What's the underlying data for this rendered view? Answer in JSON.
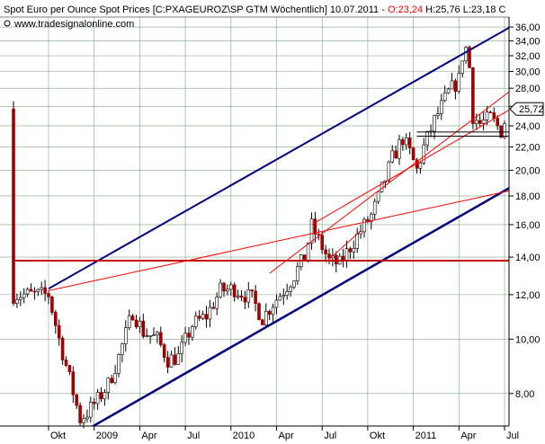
{
  "header": {
    "title": "Spot Euro per Ounce Spot Prices [C:PXAGEUROZ\\SP GTM  Wöchentlich] 10.07.2011 - ",
    "ohlc_open": "O:23,24",
    "ohlc_rest": " H:25,76 L:23,18 C",
    "website": "www.tradesignalonline.com"
  },
  "colors": {
    "background": "#ffffff",
    "grid": "#7fa87f",
    "up_candle": "#ffffff",
    "down_candle": "#a00000",
    "wick": "#000000",
    "channel": "#000080",
    "trend_red": "#ff0000",
    "support_black": "#000000"
  },
  "chart_data": {
    "type": "candlestick",
    "title": "Spot Euro per Ounce Spot Prices [C:PXAGEUROZ\\SP GTM  Wöchentlich] 10.07.2011",
    "y_scale": "log",
    "ylim": [
      7.0,
      37.5
    ],
    "y_ticks": [
      8.0,
      10.0,
      12.0,
      14.0,
      16.0,
      18.0,
      20.0,
      22.0,
      24.0,
      26.0,
      28.0,
      30.0,
      32.0,
      34.0,
      36.0
    ],
    "y_tick_labels": [
      "8,00",
      "10,00",
      "12,00",
      "14,00",
      "16,00",
      "18,00",
      "20,00",
      "22,00",
      "24,00",
      "26,00",
      "28,00",
      "30,00",
      "32,00",
      "34,00",
      "36,00"
    ],
    "last_price_label": "25,72",
    "last_price": 25.72,
    "x_labels": [
      "Okt",
      "2009",
      "Apr",
      "Jul",
      "2010",
      "Apr",
      "Jul",
      "Okt",
      "2011",
      "Apr",
      "Jul"
    ],
    "x_label_weeks": [
      0,
      13,
      26,
      39,
      52,
      65,
      78,
      91,
      104,
      117,
      130
    ],
    "weeks_before_first_label": 10,
    "total_weeks": 142,
    "gridlines": true,
    "anchor_points": [
      [
        0,
        12.0
      ],
      [
        3,
        10.0
      ],
      [
        6,
        8.5
      ],
      [
        9,
        7.2
      ],
      [
        11,
        7.4
      ],
      [
        14,
        7.8
      ],
      [
        17,
        8.3
      ],
      [
        20,
        9.3
      ],
      [
        24,
        11.2
      ],
      [
        27,
        10.3
      ],
      [
        31,
        10.0
      ],
      [
        34,
        9.2
      ],
      [
        37,
        9.3
      ],
      [
        41,
        10.6
      ],
      [
        45,
        11.0
      ],
      [
        49,
        12.2
      ],
      [
        53,
        12.3
      ],
      [
        58,
        11.8
      ],
      [
        61,
        10.9
      ],
      [
        64,
        11.6
      ],
      [
        67,
        12.2
      ],
      [
        70,
        13.0
      ],
      [
        73,
        14.0
      ],
      [
        75,
        15.9
      ],
      [
        77,
        15.0
      ],
      [
        80,
        13.8
      ],
      [
        83,
        13.6
      ],
      [
        86,
        14.6
      ],
      [
        89,
        15.6
      ],
      [
        92,
        16.6
      ],
      [
        95,
        18.5
      ],
      [
        98,
        21.0
      ],
      [
        101,
        22.8
      ],
      [
        103,
        21.5
      ],
      [
        105,
        20.0
      ],
      [
        107,
        22.0
      ],
      [
        110,
        24.5
      ],
      [
        114,
        27.5
      ],
      [
        117,
        29.0
      ],
      [
        118,
        32.0
      ],
      [
        119,
        33.0
      ],
      [
        120,
        30.5
      ],
      [
        121,
        25.0
      ],
      [
        123,
        24.2
      ],
      [
        126,
        24.8
      ],
      [
        129,
        23.5
      ],
      [
        131,
        25.5
      ],
      [
        132,
        25.72
      ]
    ],
    "lines": [
      {
        "name": "upper-channel",
        "color": "#000080",
        "width": 2,
        "points": [
          [
            0,
            12.3
          ],
          [
            136,
            37.3
          ]
        ]
      },
      {
        "name": "lower-channel",
        "color": "#000080",
        "width": 2.5,
        "points": [
          [
            11,
            6.9
          ],
          [
            142,
            20.3
          ]
        ]
      },
      {
        "name": "horizontal-resistance",
        "color": "#c00000",
        "width": 2,
        "points": [
          [
            -10,
            13.8
          ],
          [
            142,
            13.8
          ]
        ]
      },
      {
        "name": "red-fan-flat",
        "color": "#ff0000",
        "width": 1,
        "points": [
          [
            0,
            12.2
          ],
          [
            142,
            19.0
          ]
        ]
      },
      {
        "name": "red-fan-upper",
        "color": "#ff0000",
        "width": 1,
        "points": [
          [
            63,
            13.1
          ],
          [
            142,
            31.0
          ]
        ]
      },
      {
        "name": "red-fan-lower",
        "color": "#ff0000",
        "width": 1,
        "points": [
          [
            75,
            16.0
          ],
          [
            142,
            28.0
          ]
        ]
      },
      {
        "name": "red-tiny",
        "color": "#ff0000",
        "width": 1,
        "points": [
          [
            79,
            13.7
          ],
          [
            89,
            15.6
          ]
        ]
      },
      {
        "name": "support-top",
        "color": "#000000",
        "width": 1,
        "points": [
          [
            105,
            23.4
          ],
          [
            138,
            23.4
          ]
        ]
      },
      {
        "name": "support-bottom",
        "color": "#000000",
        "width": 1,
        "points": [
          [
            105,
            23.0
          ],
          [
            138,
            23.0
          ]
        ]
      }
    ]
  }
}
